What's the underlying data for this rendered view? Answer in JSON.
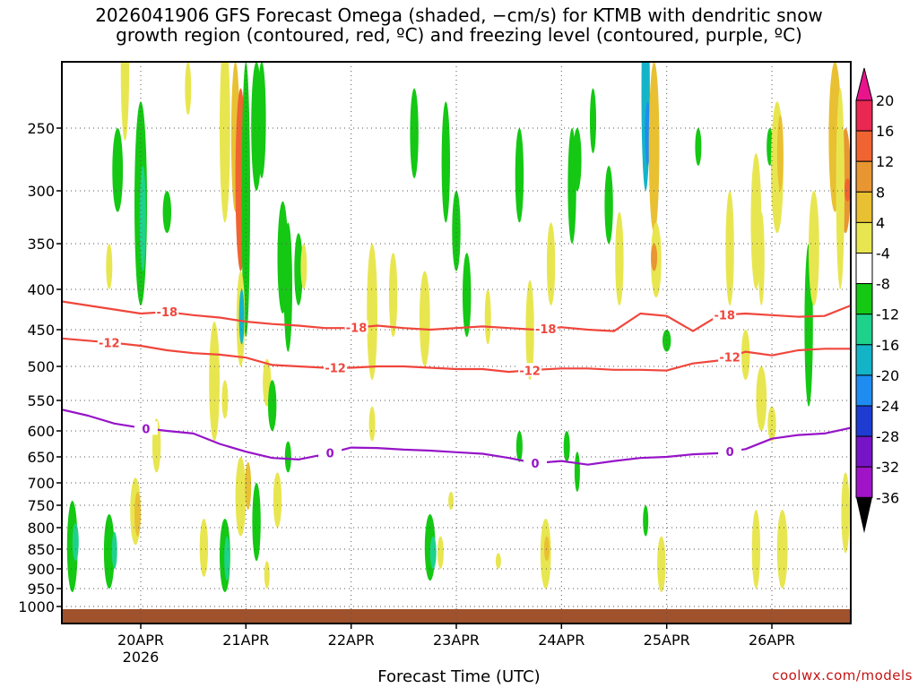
{
  "chart_data": {
    "type": "heatmap",
    "title_line1": "2026041906 GFS Forecast Omega (shaded, −cm/s) for KTMB with dendritic snow",
    "title_line2": "growth region (contoured, red, ºC) and freezing level (contoured, purple, ºC)",
    "xlabel": "Forecast Time (UTC)",
    "ylabel": "",
    "credit": "coolwx.com/models",
    "x_unit": "day (April 2026)",
    "xlim": [
      19.25,
      26.75
    ],
    "x_ticks": [
      {
        "x": 20,
        "label": "20APR",
        "sub": "2026"
      },
      {
        "x": 21,
        "label": "21APR",
        "sub": ""
      },
      {
        "x": 22,
        "label": "22APR",
        "sub": ""
      },
      {
        "x": 23,
        "label": "23APR",
        "sub": ""
      },
      {
        "x": 24,
        "label": "24APR",
        "sub": ""
      },
      {
        "x": 25,
        "label": "25APR",
        "sub": ""
      },
      {
        "x": 26,
        "label": "26APR",
        "sub": ""
      }
    ],
    "y_unit": "hPa",
    "ylim": [
      1040,
      200
    ],
    "y_ticks": [
      250,
      300,
      350,
      400,
      450,
      500,
      550,
      600,
      650,
      700,
      750,
      800,
      850,
      900,
      950,
      1000
    ],
    "colorbar": {
      "levels": [
        20,
        16,
        12,
        8,
        4,
        -4,
        -8,
        -12,
        -16,
        -20,
        -24,
        -28,
        -32,
        -36
      ],
      "colors": [
        "#e82850",
        "#f06432",
        "#e89632",
        "#e8c032",
        "#e8e650",
        "#ffffff",
        "#14c814",
        "#1ed28c",
        "#14b4c8",
        "#1e8cf0",
        "#1e3cd2",
        "#7814c8",
        "#a014c8",
        "#a0a0a0"
      ],
      "top_arrow_color": "#e8148c",
      "bottom_arrow_color": "#000000"
    },
    "series": [
      {
        "name": "-18",
        "color": "#f0463c",
        "x": [
          19.25,
          19.5,
          19.75,
          20.0,
          20.25,
          20.5,
          20.75,
          21.0,
          21.25,
          21.5,
          21.75,
          22.0,
          22.25,
          22.5,
          22.75,
          23.0,
          23.25,
          23.5,
          23.75,
          24.0,
          24.25,
          24.5,
          24.75,
          25.0,
          25.25,
          25.5,
          25.75,
          26.0,
          26.25,
          26.5,
          26.75
        ],
        "y": [
          415,
          420,
          425,
          430,
          428,
          432,
          435,
          440,
          443,
          445,
          448,
          448,
          445,
          448,
          450,
          448,
          446,
          448,
          450,
          447,
          450,
          452,
          430,
          433,
          452,
          432,
          430,
          432,
          434,
          433,
          420
        ],
        "labels_at_x": [
          20.25,
          22.05,
          23.85,
          25.55
        ]
      },
      {
        "name": "-12",
        "color": "#f0463c",
        "x": [
          19.25,
          19.5,
          19.75,
          20.0,
          20.25,
          20.5,
          20.75,
          21.0,
          21.25,
          21.5,
          21.75,
          22.0,
          22.25,
          22.5,
          22.75,
          23.0,
          23.25,
          23.5,
          23.75,
          24.0,
          24.25,
          24.5,
          24.75,
          25.0,
          25.25,
          25.5,
          25.75,
          26.0,
          26.25,
          26.5,
          26.75
        ],
        "y": [
          462,
          465,
          468,
          472,
          478,
          482,
          484,
          488,
          498,
          500,
          502,
          502,
          500,
          500,
          502,
          504,
          504,
          508,
          505,
          503,
          503,
          505,
          505,
          506,
          496,
          492,
          480,
          485,
          478,
          476,
          476
        ],
        "labels_at_x": [
          19.7,
          21.85,
          23.7,
          25.6
        ]
      },
      {
        "name": "0",
        "color": "#9614c8",
        "x": [
          19.25,
          19.5,
          19.75,
          20.0,
          20.25,
          20.5,
          20.75,
          21.0,
          21.25,
          21.5,
          21.75,
          22.0,
          22.25,
          22.5,
          22.75,
          23.0,
          23.25,
          23.5,
          23.75,
          24.0,
          24.25,
          24.5,
          24.75,
          25.0,
          25.25,
          25.5,
          25.75,
          26.0,
          26.25,
          26.5,
          26.75
        ],
        "y": [
          565,
          575,
          588,
          595,
          600,
          605,
          625,
          640,
          652,
          655,
          645,
          632,
          633,
          636,
          638,
          641,
          644,
          652,
          662,
          658,
          665,
          658,
          652,
          650,
          645,
          643,
          635,
          615,
          608,
          605,
          595
        ],
        "labels_at_x": [
          20.05,
          21.8,
          23.75,
          25.6
        ]
      }
    ]
  }
}
